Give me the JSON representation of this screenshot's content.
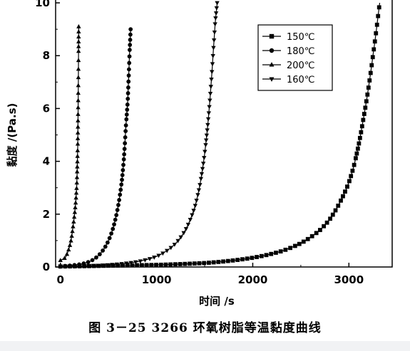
{
  "caption": "图 3－25    3266 环氧树脂等温黏度曲线",
  "chart_data": {
    "type": "line",
    "xlabel": "时间 /s",
    "ylabel": "黏度 /(Pa.s)",
    "xlim": [
      -50,
      3450
    ],
    "ylim": [
      0,
      10
    ],
    "x_ticks": [
      "0",
      "1000",
      "2000",
      "3000"
    ],
    "y_ticks": [
      "0",
      "2",
      "4",
      "6",
      "8",
      "10"
    ],
    "legend_position": "top-right",
    "series": [
      {
        "name": "150℃",
        "marker": "square",
        "x": [
          0,
          500,
          1000,
          1500,
          2000,
          2300,
          2500,
          2700,
          2800,
          2900,
          3000,
          3050,
          3100,
          3150,
          3200,
          3250,
          3300,
          3320
        ],
        "y": [
          0.02,
          0.05,
          0.08,
          0.15,
          0.35,
          0.6,
          0.9,
          1.4,
          1.8,
          2.4,
          3.2,
          3.8,
          4.6,
          5.6,
          6.7,
          8.0,
          9.4,
          10
        ]
      },
      {
        "name": "180℃",
        "marker": "circle",
        "x": [
          0,
          200,
          300,
          400,
          500,
          550,
          600,
          640,
          660,
          680,
          700,
          710,
          720,
          730
        ],
        "y": [
          0.03,
          0.1,
          0.2,
          0.45,
          1.0,
          1.5,
          2.3,
          3.3,
          4.1,
          5.3,
          6.3,
          7.2,
          8.2,
          9.0
        ]
      },
      {
        "name": "200℃",
        "marker": "triangle-up",
        "x": [
          0,
          50,
          80,
          110,
          130,
          150,
          160,
          170,
          180,
          190
        ],
        "y": [
          0.25,
          0.35,
          0.6,
          1.0,
          1.5,
          2.1,
          2.5,
          3.1,
          4.6,
          9.1
        ]
      },
      {
        "name": "160℃",
        "marker": "triangle-down",
        "x": [
          0,
          400,
          800,
          1000,
          1200,
          1300,
          1400,
          1450,
          1500,
          1530,
          1560,
          1590,
          1610,
          1630
        ],
        "y": [
          0.02,
          0.06,
          0.2,
          0.4,
          0.9,
          1.4,
          2.3,
          3.1,
          4.3,
          5.3,
          6.6,
          8.2,
          9.3,
          10
        ]
      }
    ]
  }
}
